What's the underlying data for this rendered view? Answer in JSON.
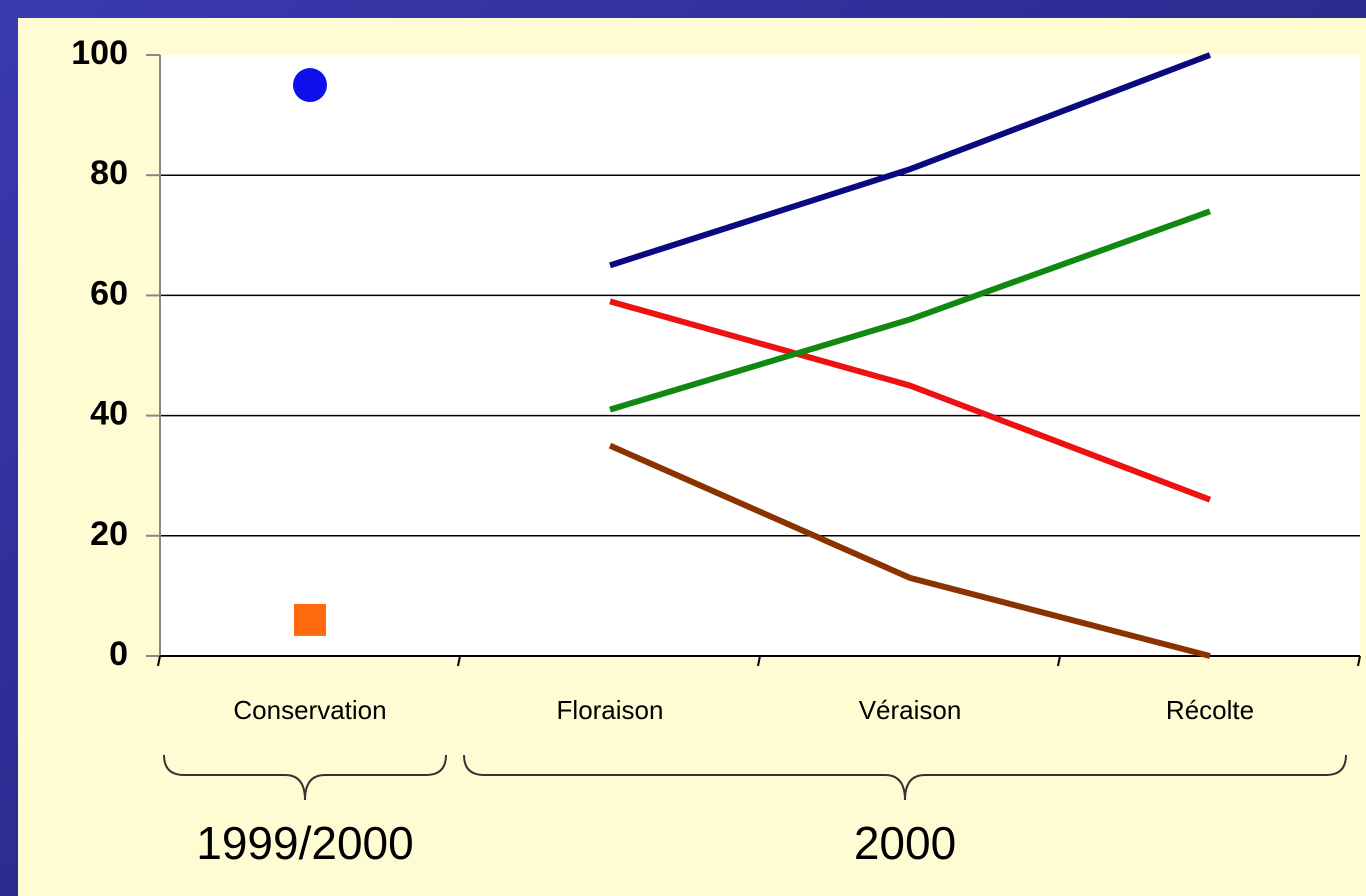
{
  "chart_data": {
    "type": "line",
    "categories": [
      "Conservation",
      "Floraison",
      "Véraison",
      "Récolte"
    ],
    "series": [
      {
        "color": "#0a0a80",
        "values": [
          null,
          65,
          81,
          100
        ]
      },
      {
        "color": "#ee1111",
        "values": [
          null,
          59,
          45,
          26
        ]
      },
      {
        "color": "#118811",
        "values": [
          null,
          41,
          56,
          74
        ]
      },
      {
        "color": "#8b3300",
        "values": [
          null,
          35,
          13,
          0
        ]
      },
      {
        "color": "#1010ee",
        "marker": "circle",
        "values": [
          95,
          null,
          null,
          null
        ]
      },
      {
        "color": "#ff6a10",
        "marker": "square",
        "values": [
          6,
          null,
          null,
          null
        ]
      }
    ],
    "groups": [
      {
        "label": "1999/2000",
        "categories": [
          "Conservation"
        ]
      },
      {
        "label": "2000",
        "categories": [
          "Floraison",
          "Véraison",
          "Récolte"
        ]
      }
    ],
    "ylim": [
      0,
      100
    ],
    "yticks": [
      0,
      20,
      40,
      60,
      80,
      100
    ],
    "grid": true
  }
}
